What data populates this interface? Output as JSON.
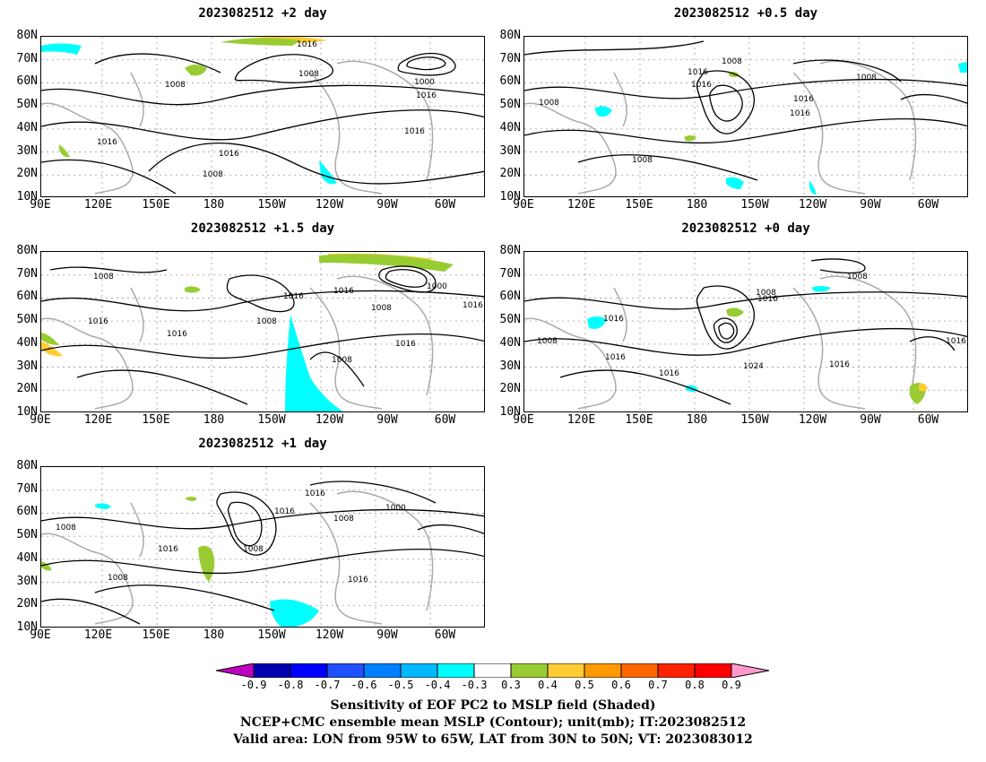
{
  "panels": [
    {
      "title": "2023082512 +2 day",
      "contour_labels": [
        "1016",
        "1008",
        "1000",
        "1016",
        "1008",
        "1016",
        "1016",
        "1008",
        "1016"
      ]
    },
    {
      "title": "2023082512 +0.5 day",
      "contour_labels": [
        "1008",
        "1016",
        "1016",
        "1008",
        "1016",
        "1016",
        "1008",
        "1008"
      ]
    },
    {
      "title": "2023082512 +1.5 day",
      "contour_labels": [
        "1008",
        "1016",
        "1016",
        "1016",
        "1008",
        "1016",
        "1000",
        "1008",
        "1016",
        "1016",
        "1008"
      ]
    },
    {
      "title": "2023082512 +0 day",
      "contour_labels": [
        "1008",
        "1016",
        "1016",
        "1008",
        "1016",
        "1024",
        "1016",
        "1008",
        "1016",
        "1016"
      ]
    },
    {
      "title": "2023082512 +1 day",
      "contour_labels": [
        "1016",
        "1016",
        "1008",
        "1000",
        "1008",
        "1016",
        "1008",
        "1008",
        "1016"
      ]
    }
  ],
  "axes": {
    "lat_labels": [
      "80N",
      "70N",
      "60N",
      "50N",
      "40N",
      "30N",
      "20N",
      "10N"
    ],
    "lon_labels": [
      "90E",
      "120E",
      "150E",
      "180",
      "150W",
      "120W",
      "90W",
      "60W"
    ]
  },
  "colorbar": {
    "labels": [
      "-0.9",
      "-0.8",
      "-0.7",
      "-0.6",
      "-0.5",
      "-0.4",
      "-0.3",
      "0.3",
      "0.4",
      "0.5",
      "0.6",
      "0.7",
      "0.8",
      "0.9"
    ],
    "colors": [
      "#c000c0",
      "#0000b0",
      "#0000ff",
      "#2050ff",
      "#0080ff",
      "#00b8ff",
      "#00ffff",
      "#ffffff",
      "#99cc33",
      "#ffcc33",
      "#ff9900",
      "#ff6600",
      "#ff2200",
      "#ff0000",
      "#ff99cc"
    ]
  },
  "caption": {
    "line1": "Sensitivity of EOF PC2 to MSLP field (Shaded)",
    "line2": "NCEP+CMC ensemble mean MSLP (Contour); unit(mb); IT:2023082512",
    "line3": "Valid area: LON from 95W to 65W, LAT from 30N to 50N; VT: 2023083012"
  }
}
